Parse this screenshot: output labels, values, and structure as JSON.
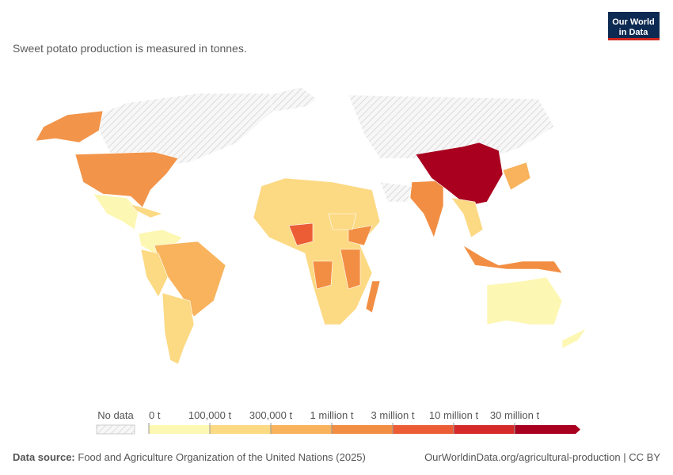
{
  "header": {
    "subtitle": "Sweet potato production is measured in tonnes.",
    "logo": [
      "Our World",
      "in Data"
    ]
  },
  "legend": {
    "no_data": "No data",
    "ticks": [
      "0 t",
      "100,000 t",
      "300,000 t",
      "1 million t",
      "3 million t",
      "10 million t",
      "30 million t"
    ],
    "colors": [
      "#fdf7b4",
      "#fcd983",
      "#f8b35c",
      "#f28e43",
      "#ec5d36",
      "#d62a2a",
      "#a8001e"
    ]
  },
  "footer": {
    "source_label": "Data source:",
    "source": "Food and Agriculture Organization of the United Nations (2025)",
    "url": "OurWorldinData.org/agricultural-production | CC BY"
  }
}
